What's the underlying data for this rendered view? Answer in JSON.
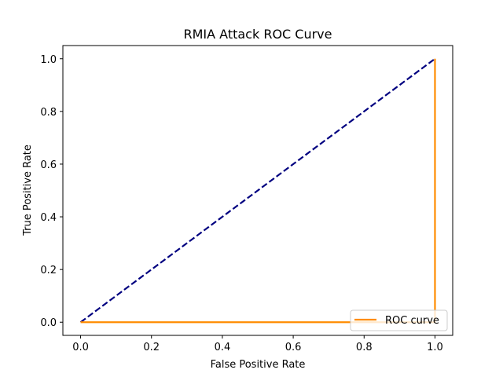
{
  "chart_data": {
    "type": "line",
    "title": "RMIA Attack ROC Curve",
    "xlabel": "False Positive Rate",
    "ylabel": "True Positive Rate",
    "xlim": [
      -0.05,
      1.05
    ],
    "ylim": [
      -0.05,
      1.05
    ],
    "x_ticks": [
      "0.0",
      "0.2",
      "0.4",
      "0.6",
      "0.8",
      "1.0"
    ],
    "y_ticks": [
      "0.0",
      "0.2",
      "0.4",
      "0.6",
      "0.8",
      "1.0"
    ],
    "grid": false,
    "legend_position": "lower-right",
    "series": [
      {
        "name": "ROC curve",
        "color": "#ff8c00",
        "style": "solid",
        "x": [
          0.0,
          1.0,
          1.0
        ],
        "y": [
          0.0,
          0.0,
          1.0
        ]
      },
      {
        "color": "#000080",
        "style": "dashed",
        "x": [
          0.0,
          1.0
        ],
        "y": [
          0.0,
          1.0
        ]
      }
    ]
  }
}
